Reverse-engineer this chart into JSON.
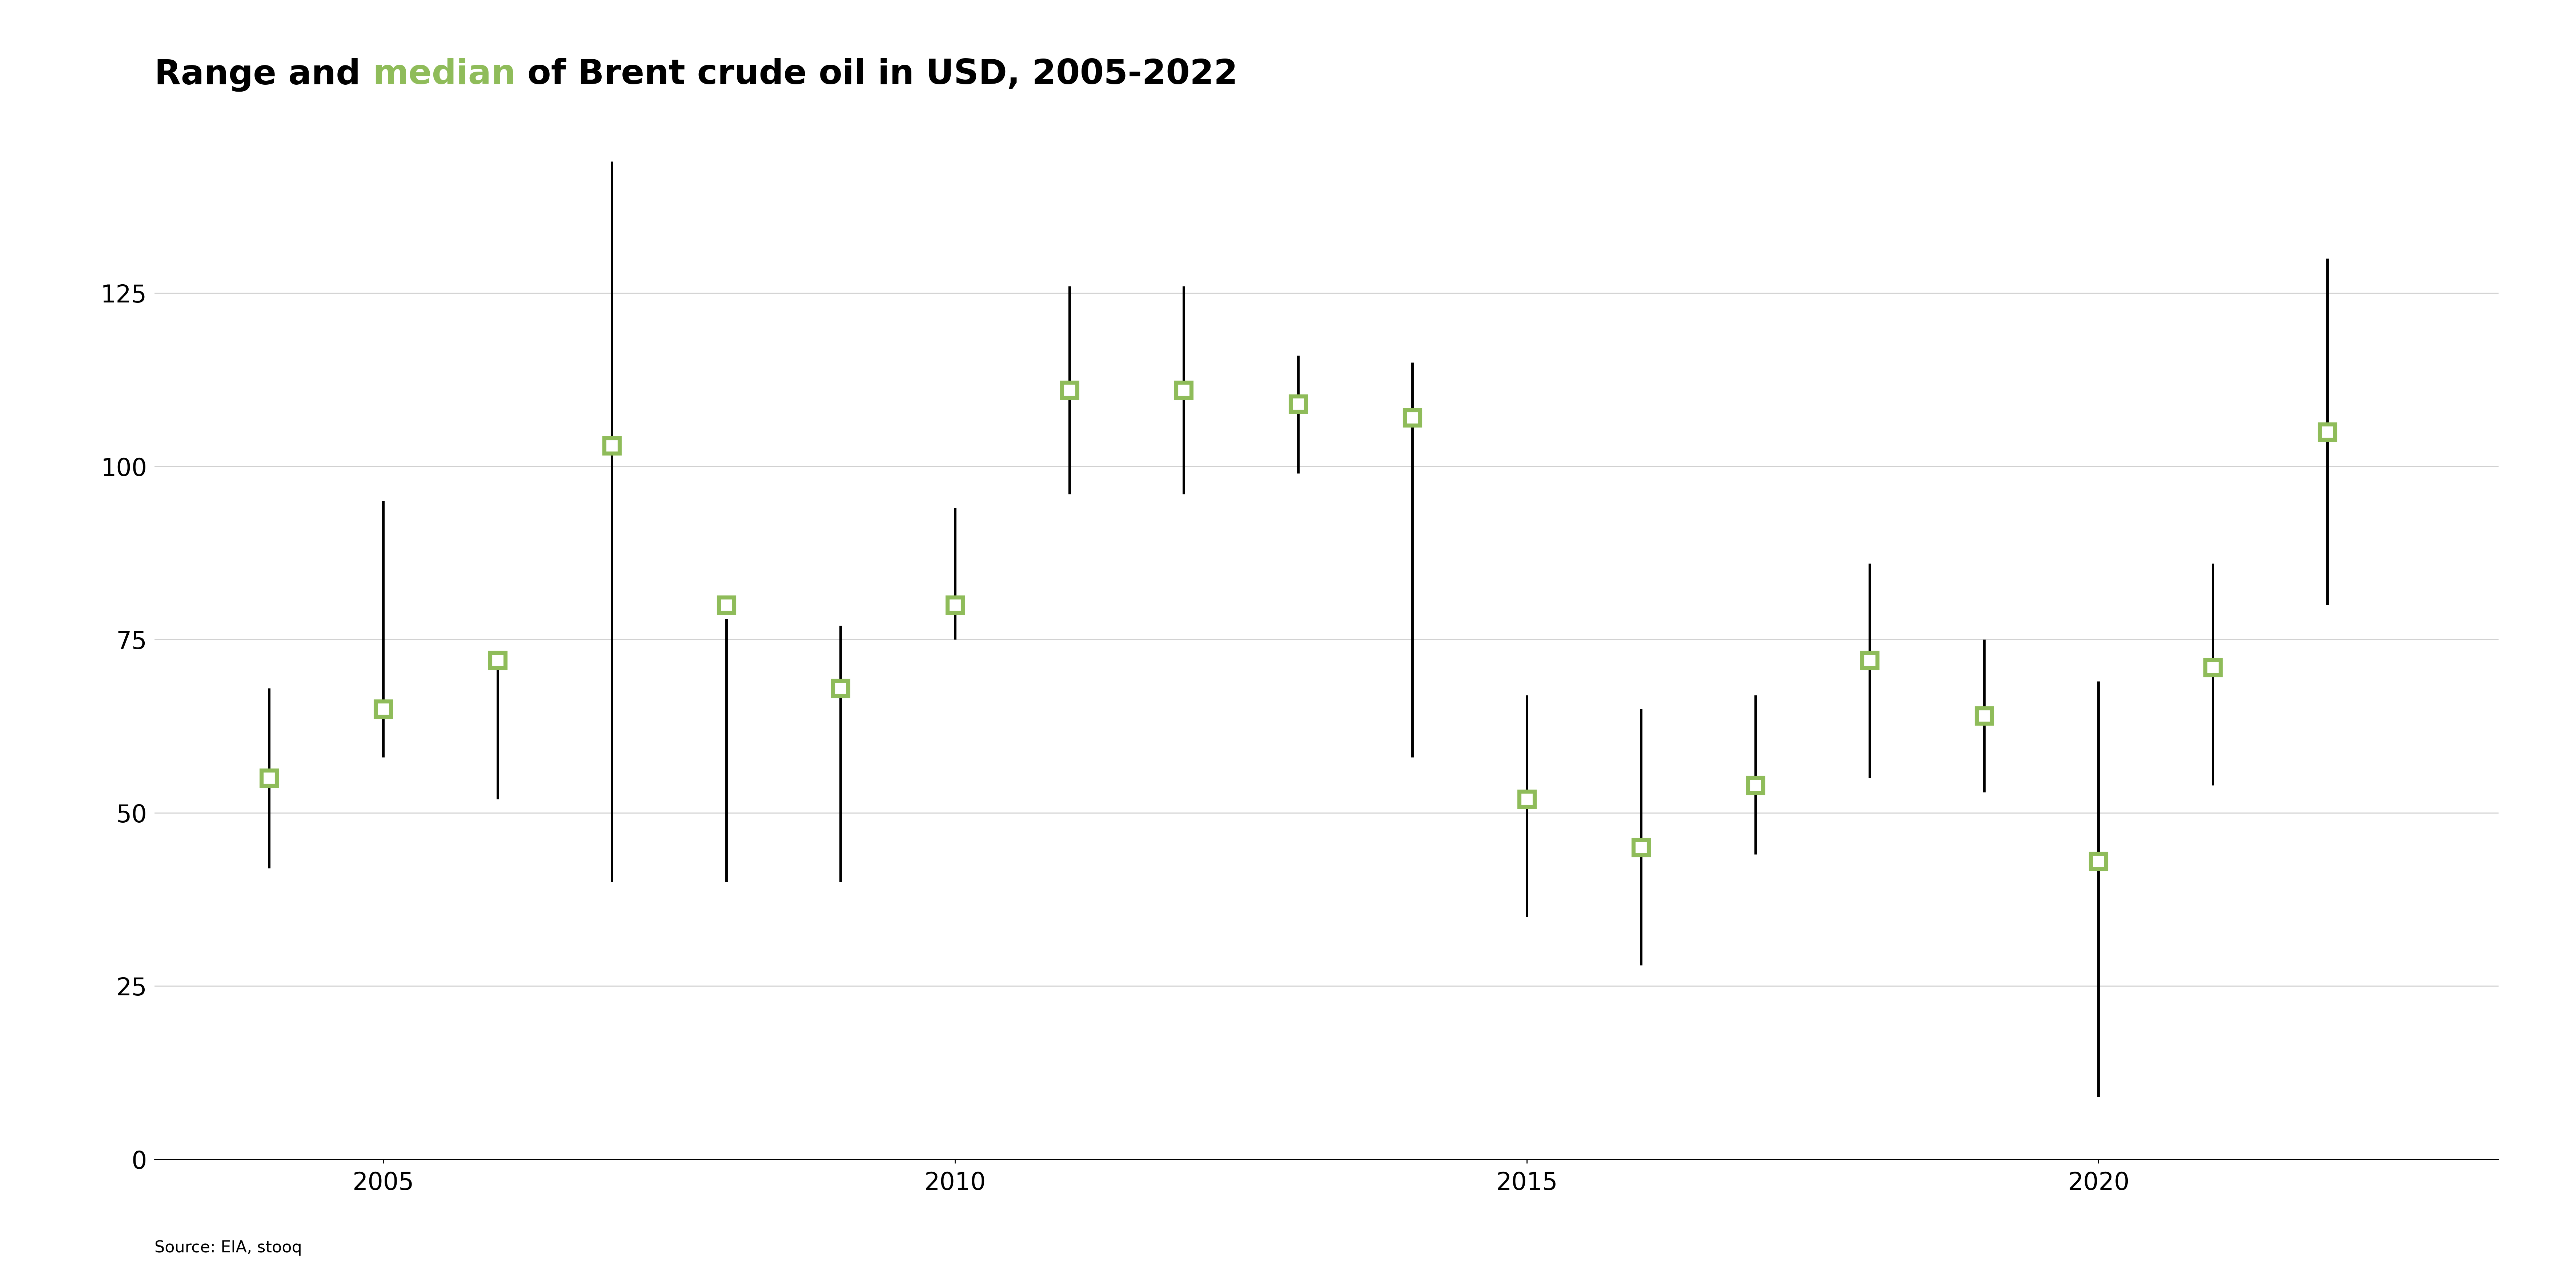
{
  "title_parts": [
    {
      "text": "Range and ",
      "color": "#000000",
      "bold": true
    },
    {
      "text": "median",
      "color": "#8fbc5a",
      "bold": true
    },
    {
      "text": " of Brent crude oil in USD, 2005-2022",
      "color": "#000000",
      "bold": true
    }
  ],
  "source": "Source: EIA, stooq",
  "years": [
    2004,
    2005,
    2006,
    2007,
    2008,
    2009,
    2010,
    2011,
    2012,
    2013,
    2014,
    2015,
    2016,
    2017,
    2018,
    2019,
    2020,
    2021,
    2022
  ],
  "medians": [
    55,
    65,
    72,
    103,
    80,
    68,
    80,
    111,
    111,
    109,
    107,
    52,
    45,
    54,
    72,
    64,
    43,
    71,
    105
  ],
  "mins": [
    42,
    58,
    52,
    40,
    40,
    40,
    75,
    96,
    96,
    99,
    58,
    35,
    28,
    44,
    55,
    53,
    9,
    54,
    80
  ],
  "maxs": [
    68,
    95,
    73,
    144,
    78,
    77,
    94,
    126,
    126,
    116,
    115,
    67,
    65,
    67,
    86,
    75,
    69,
    86,
    130
  ],
  "ylim": [
    0,
    145
  ],
  "yticks": [
    0,
    25,
    50,
    75,
    100,
    125
  ],
  "xtick_years": [
    2005,
    2010,
    2015,
    2020
  ],
  "xlim": [
    2003.0,
    2023.5
  ],
  "background_color": "#ffffff",
  "line_color": "#000000",
  "median_marker_facecolor": "#ffffff",
  "median_marker_edgecolor": "#8fbc5a",
  "grid_color": "#d0d0d0",
  "line_width": 5.0,
  "marker_size": 30,
  "marker_linewidth": 8.0,
  "title_fontsize": 68,
  "axis_fontsize": 48,
  "source_fontsize": 32
}
